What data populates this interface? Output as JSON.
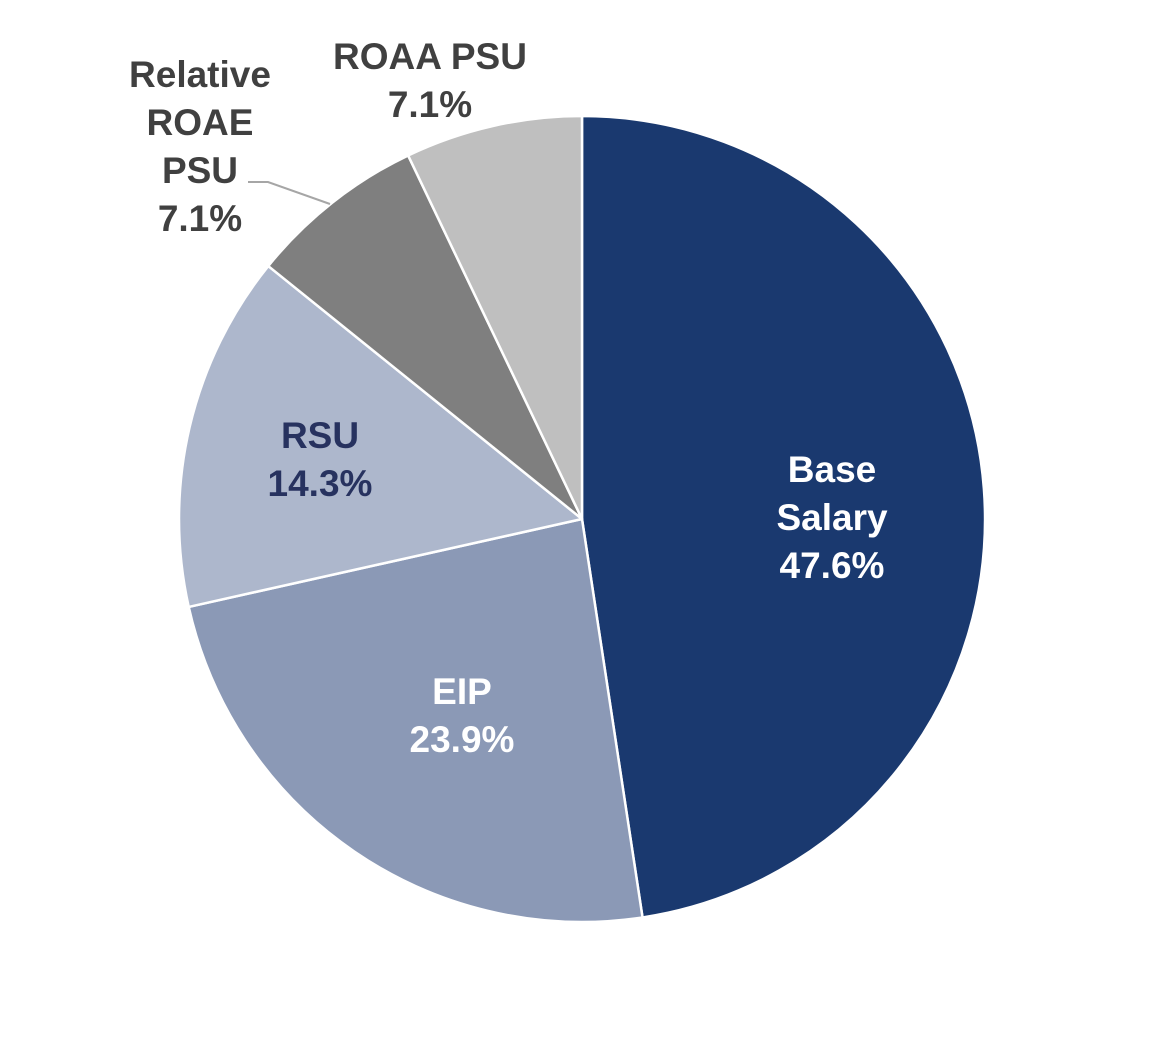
{
  "chart_data": {
    "type": "pie",
    "title": "",
    "start_angle_deg": 0,
    "direction": "clockwise",
    "slices": [
      {
        "label_lines": [
          "Base",
          "Salary"
        ],
        "value": 47.6,
        "value_label": "47.6%",
        "color": "#1a396f",
        "label_color": "#ffffff"
      },
      {
        "label_lines": [
          "EIP"
        ],
        "value": 23.9,
        "value_label": "23.9%",
        "color": "#8b99b6",
        "label_color": "#ffffff"
      },
      {
        "label_lines": [
          "RSU"
        ],
        "value": 14.3,
        "value_label": "14.3%",
        "color": "#adb7cc",
        "label_color": "#27325f"
      },
      {
        "label_lines": [
          "Relative",
          "ROAE",
          "PSU"
        ],
        "value": 7.1,
        "value_label": "7.1%",
        "color": "#7f7f7f",
        "label_color": "#404040",
        "label_outside": true,
        "leader_line": true
      },
      {
        "label_lines": [
          "ROAA PSU"
        ],
        "value": 7.1,
        "value_label": "7.1%",
        "color": "#bfbfbf",
        "label_color": "#404040",
        "label_outside": true
      }
    ]
  }
}
